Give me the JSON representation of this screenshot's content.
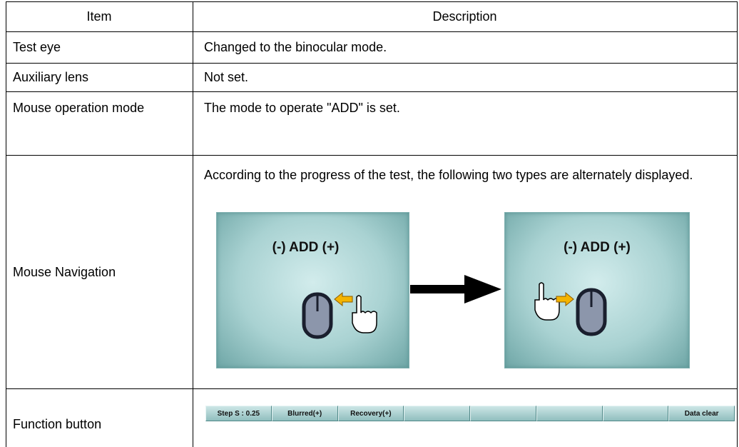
{
  "table": {
    "header": [
      "Item",
      "Description"
    ],
    "rows": [
      [
        "Test eye",
        "Changed to the binocular mode."
      ],
      [
        "Auxiliary lens",
        "Not set."
      ],
      [
        "Mouse operation mode",
        "The mode to operate \"ADD\" is set."
      ],
      [
        "Mouse Navigation",
        "According to the progress of the test, the following two types are alternately displayed."
      ],
      [
        "Function button"
      ]
    ]
  },
  "navigation_images": [
    {
      "label": "(-) ADD (+)"
    },
    {
      "label": "(-) ADD (+)"
    }
  ],
  "function_buttons": [
    "Step S : 0.25",
    "Blurred(+)",
    "Recovery(+)",
    "Data clear"
  ]
}
